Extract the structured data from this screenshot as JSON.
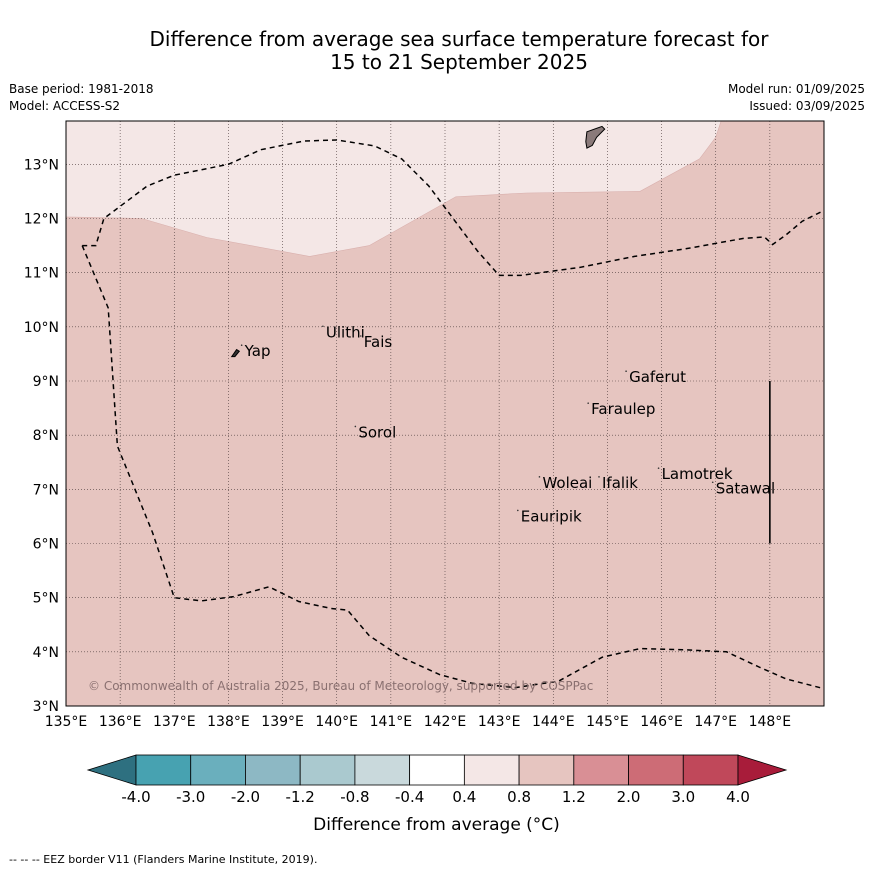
{
  "title": {
    "line1": "Difference from average sea surface temperature forecast for",
    "line2": "15 to 21 September 2025"
  },
  "meta": {
    "base_period": "Base period: 1981-2018",
    "model": "Model: ACCESS-S2",
    "model_run": "Model run: 01/09/2025",
    "issued": "Issued: 03/09/2025"
  },
  "map": {
    "lon_range": [
      135,
      149
    ],
    "lat_range": [
      3,
      13.8
    ],
    "lon_ticks": [
      "135°E",
      "136°E",
      "137°E",
      "138°E",
      "139°E",
      "140°E",
      "141°E",
      "142°E",
      "143°E",
      "144°E",
      "145°E",
      "146°E",
      "147°E",
      "148°E"
    ],
    "lat_ticks": [
      "3°N",
      "4°N",
      "5°N",
      "6°N",
      "7°N",
      "8°N",
      "9°N",
      "10°N",
      "11°N",
      "12°N",
      "13°N"
    ],
    "ocean_color": "#e6c5c0",
    "light_color": "#f4e7e6",
    "places": [
      {
        "name": "Yap",
        "lon": 138.3,
        "lat": 9.55
      },
      {
        "name": "Ulithi",
        "lon": 139.8,
        "lat": 9.9
      },
      {
        "name": "Fais",
        "lon": 140.5,
        "lat": 9.72
      },
      {
        "name": "Gaferut",
        "lon": 145.4,
        "lat": 9.07
      },
      {
        "name": "Faraulep",
        "lon": 144.7,
        "lat": 8.48
      },
      {
        "name": "Sorol",
        "lon": 140.4,
        "lat": 8.05
      },
      {
        "name": "Lamotrek",
        "lon": 146.0,
        "lat": 7.28
      },
      {
        "name": "Woleai",
        "lon": 143.8,
        "lat": 7.12
      },
      {
        "name": "Ifalik",
        "lon": 144.9,
        "lat": 7.12
      },
      {
        "name": "Satawal",
        "lon": 147.0,
        "lat": 7.02
      },
      {
        "name": "Eauripik",
        "lon": 143.4,
        "lat": 6.5
      }
    ],
    "copyright": "© Commonwealth of Australia 2025, Bureau of Meteorology, supported by COSPPac"
  },
  "colorbar": {
    "labels": [
      "-4.0",
      "-3.0",
      "-2.0",
      "-1.2",
      "-0.8",
      "-0.4",
      "0.4",
      "0.8",
      "1.2",
      "2.0",
      "3.0",
      "4.0"
    ],
    "colors": [
      "#2e7080",
      "#47a2b1",
      "#6aafbd",
      "#8db8c4",
      "#aac9cf",
      "#c9d9dc",
      "#ffffff",
      "#f4e7e6",
      "#e6c5c0",
      "#d98f95",
      "#cd6c76",
      "#c0485a",
      "#a81c3a"
    ],
    "title": "Difference from average (°C)"
  },
  "footer": "-- -- -- EEZ border V11 (Flanders Marine Institute, 2019)."
}
